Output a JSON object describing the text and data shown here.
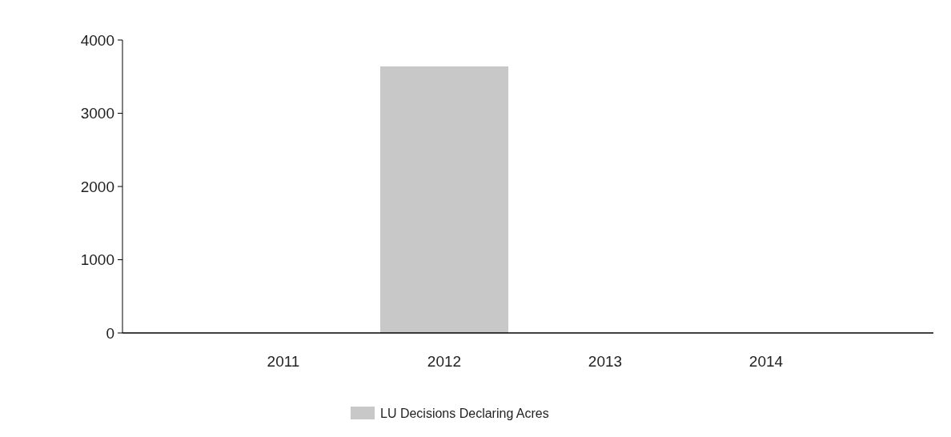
{
  "chart_data": {
    "type": "bar",
    "categories": [
      "2011",
      "2012",
      "2013",
      "2014"
    ],
    "series": [
      {
        "name": "LU Decisions Declaring Acres",
        "color": "#c8c8c8",
        "values": [
          0,
          3640,
          0,
          0
        ]
      }
    ],
    "ylim": [
      0,
      4000
    ],
    "yticks": [
      0,
      1000,
      2000,
      3000,
      4000
    ],
    "grid": false,
    "legend": "bottom"
  }
}
